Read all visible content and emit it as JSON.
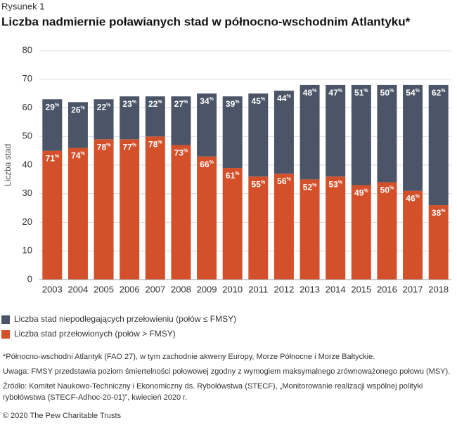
{
  "chart_data": {
    "type": "stacked_bar",
    "label": "Rysunek 1",
    "title": "Liczba nadmiernie poławianych stad w północno-wschodnim Atlantyku*",
    "y_label": "Liczba stad",
    "categories": [
      "2003",
      "2004",
      "2005",
      "2006",
      "2007",
      "2008",
      "2009",
      "2010",
      "2011",
      "2012",
      "2013",
      "2014",
      "2015",
      "2016",
      "2017",
      "2018"
    ],
    "series": [
      {
        "name": "Liczba stad przełowionych (połów > FMSY)",
        "color": "#d4502a",
        "values": [
          45,
          46,
          49,
          49,
          50,
          47,
          43,
          39,
          36,
          37,
          35,
          36,
          33,
          34,
          31,
          26
        ],
        "shares": [
          71,
          74,
          78,
          77,
          78,
          73,
          66,
          61,
          55,
          56,
          52,
          53,
          49,
          50,
          46,
          38
        ]
      },
      {
        "name": "Liczba stad niepodlegających przełowieniu (połów ≤ FMSY)",
        "color": "#4b5567",
        "values": [
          18,
          16,
          14,
          15,
          14,
          17,
          22,
          25,
          29,
          29,
          33,
          32,
          35,
          34,
          37,
          42
        ],
        "shares": [
          29,
          26,
          22,
          23,
          22,
          27,
          34,
          39,
          45,
          44,
          48,
          47,
          51,
          50,
          54,
          62
        ]
      }
    ],
    "share_suffix": "%",
    "ylim": [
      0,
      80
    ],
    "yticks": [
      0,
      10,
      20,
      30,
      40,
      50,
      60,
      70,
      80
    ],
    "grid": true,
    "notes": [
      "*Północno-wschodni Atlantyk (FAO 27), w tym zachodnie akweny Europy, Morze Północne i Morze Bałtyckie.",
      "Uwaga: FMSY przedstawia poziom śmiertelności połowowej zgodny z wymogiem maksymalnego zrównoważonego połowu (MSY).",
      "Źródło: Komitet Naukowo-Techniczny i Ekonomiczny ds. Rybołówstwa (STECF), „Monitorowanie realizacji wspólnej polityki rybołówstwa (STECF-Adhoc-20-01)”, kwiecień 2020 r.",
      "© 2020 The Pew Charitable Trusts"
    ]
  }
}
